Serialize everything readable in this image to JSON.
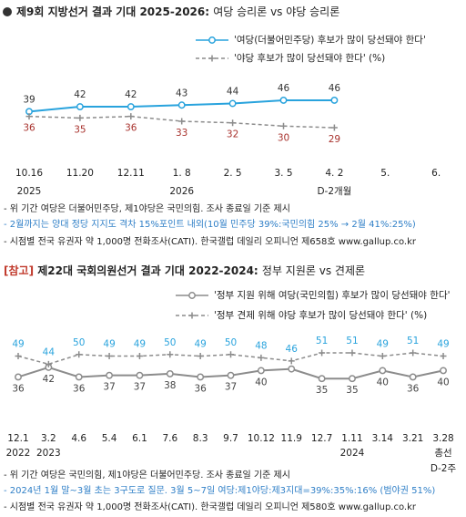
{
  "chart_data": [
    {
      "type": "line",
      "title": "제9회 지방선거 결과 기대 2025-2026:",
      "subtitle": "여당 승리론 vs 야당 승리론",
      "categories": [
        "10.16",
        "11.20",
        "12.11",
        "1. 8",
        "2. 5",
        "3. 5",
        "4. 2",
        "5.",
        "6."
      ],
      "x_sublabels": [
        "2025",
        null,
        null,
        "2026",
        null,
        null,
        "D-2개월",
        null,
        null
      ],
      "ylim": [
        20,
        55
      ],
      "series": [
        {
          "name": "'여당(더불어민주당) 후보가 많이 당선돼야 한다'",
          "color": "#29a3dd",
          "line_style": "solid",
          "marker": "circle",
          "label_color": "#333333",
          "label_position": "above",
          "values": [
            39,
            42,
            42,
            43,
            44,
            46,
            46,
            null,
            null
          ]
        },
        {
          "name": "'야당 후보가 많이 당선돼야 한다' (%)",
          "color": "#8c8c8c",
          "line_style": "dashed",
          "marker": "plus",
          "label_color": "#a8322d",
          "label_position": "below",
          "values": [
            36,
            35,
            36,
            33,
            32,
            30,
            29,
            null,
            null
          ]
        }
      ],
      "notes": [
        "- 위 기간 여당은 더불어민주당, 제1야당은 국민의힘. 조사 종료일 기준 제시",
        "- 2월까지는 양대 정당 지지도 격차 15%포인트 내외(10월 민주당 39%:국민의힘 25% → 2월 41%:25%)",
        "- 시점별 전국 유권자 약 1,000명 전화조사(CATI). 한국갤럽 데일리 오피니언 제658호 www.gallup.co.kr"
      ]
    },
    {
      "type": "line",
      "tag": "[참고]",
      "title": "제22대 국회의원선거 결과 기대 2022-2024:",
      "subtitle": "정부 지원론 vs 견제론",
      "categories": [
        "12.1",
        "3.2",
        "4.6",
        "5.4",
        "6.1",
        "7.6",
        "8.3",
        "9.7",
        "10.12",
        "11.9",
        "12.7",
        "1.11",
        "3.14",
        "3.21",
        "3.28"
      ],
      "x_sublabels": [
        "2022",
        "2023",
        null,
        null,
        null,
        null,
        null,
        null,
        null,
        null,
        null,
        "2024",
        null,
        null,
        "총선"
      ],
      "x_sublabels2": [
        null,
        null,
        null,
        null,
        null,
        null,
        null,
        null,
        null,
        null,
        null,
        null,
        null,
        null,
        "D-2주"
      ],
      "ylim": [
        30,
        55
      ],
      "series": [
        {
          "name": "'정부 지원 위해 여당(국민의힘) 후보가 많이 당선돼야 한다'",
          "color": "#8c8c8c",
          "line_style": "solid",
          "marker": "circle",
          "label_color": "#444444",
          "label_position": "below",
          "values": [
            36,
            42,
            36,
            37,
            37,
            38,
            36,
            37,
            40,
            41,
            35,
            35,
            40,
            36,
            40
          ],
          "value_labels": [
            "36",
            "42",
            "36",
            "37",
            "37",
            "38",
            "36",
            "37",
            "40",
            null,
            "35",
            "35",
            "40",
            "36",
            "40"
          ]
        },
        {
          "name": "'정부 견제 위해 야당 후보가 많이 당선돼야 한다' (%)",
          "color": "#8c8c8c",
          "line_style": "dashed",
          "marker": "plus",
          "label_color": "#29a3dd",
          "label_position": "above",
          "values": [
            49,
            44,
            50,
            49,
            49,
            50,
            49,
            50,
            48,
            46,
            51,
            51,
            49,
            51,
            49
          ]
        }
      ],
      "notes": [
        "- 위 기간 여당은 국민의힘, 제1야당은 더불어민주당. 조사 종료일 기준 제시",
        "- 2024년 1월 말~3월 초는 3구도로 질문. 3월 5~7일 여당:제1야당:제3지대=39%:35%:16% (범야권 51%)",
        "- 시점별 전국 유권자 약 1,000명 전화조사(CATI). 한국갤럽 데일리 오피니언 제580호 www.gallup.co.kr"
      ]
    }
  ]
}
